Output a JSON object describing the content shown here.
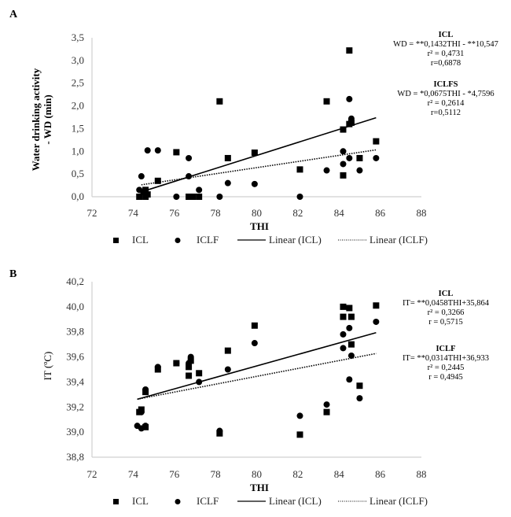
{
  "chart_data": [
    {
      "type": "scatter",
      "panel_label": "A",
      "title": "",
      "xlabel": "THI",
      "ylabel": "Water drinking activity - WD (min)",
      "ylabel_lines": [
        "Water drinking activity",
        "- WD (min)"
      ],
      "xlim": [
        72,
        88
      ],
      "ylim": [
        0,
        3.5
      ],
      "x_ticks": [
        "72",
        "74",
        "76",
        "78",
        "80",
        "82",
        "84",
        "86",
        "88"
      ],
      "y_ticks": [
        "0,0",
        "0,5",
        "1,0",
        "1,5",
        "2,0",
        "2,5",
        "3,0",
        "3,5"
      ],
      "grid": false,
      "legend_position": "bottom",
      "series": [
        {
          "name": "ICL",
          "marker": "square",
          "points": [
            [
              74.3,
              0.0
            ],
            [
              74.6,
              0.0
            ],
            [
              74.7,
              0.05
            ],
            [
              74.5,
              0.1
            ],
            [
              74.6,
              0.15
            ],
            [
              75.2,
              0.35
            ],
            [
              76.1,
              0.98
            ],
            [
              76.7,
              0.0
            ],
            [
              76.9,
              0.0
            ],
            [
              77.2,
              0.0
            ],
            [
              78.2,
              2.1
            ],
            [
              78.6,
              0.85
            ],
            [
              79.9,
              0.97
            ],
            [
              82.1,
              0.6
            ],
            [
              83.4,
              2.1
            ],
            [
              84.2,
              1.48
            ],
            [
              84.2,
              0.47
            ],
            [
              84.5,
              1.6
            ],
            [
              84.6,
              1.63
            ],
            [
              84.5,
              3.22
            ],
            [
              85.0,
              0.85
            ],
            [
              85.8,
              1.22
            ]
          ]
        },
        {
          "name": "ICLF",
          "marker": "circle",
          "points": [
            [
              74.3,
              0.15
            ],
            [
              74.4,
              0.45
            ],
            [
              74.6,
              0.1
            ],
            [
              74.7,
              1.02
            ],
            [
              75.2,
              1.02
            ],
            [
              76.1,
              0.0
            ],
            [
              76.7,
              0.85
            ],
            [
              76.7,
              0.45
            ],
            [
              77.2,
              0.15
            ],
            [
              78.2,
              0.0
            ],
            [
              78.6,
              0.3
            ],
            [
              79.9,
              0.28
            ],
            [
              82.1,
              0.0
            ],
            [
              83.4,
              0.58
            ],
            [
              84.2,
              0.72
            ],
            [
              84.2,
              1.0
            ],
            [
              84.5,
              0.85
            ],
            [
              84.6,
              1.72
            ],
            [
              84.5,
              2.15
            ],
            [
              85.0,
              0.58
            ],
            [
              85.8,
              0.85
            ]
          ]
        },
        {
          "name": "Linear (ICL)",
          "type": "trendline",
          "style": "solid",
          "slope": 0.1432,
          "intercept": -10.547,
          "x_range": [
            74.4,
            85.8
          ]
        },
        {
          "name": "Linear (ICLF)",
          "type": "trendline",
          "style": "dotted",
          "slope": 0.0675,
          "intercept": -4.7596,
          "x_range": [
            74.4,
            85.8
          ]
        }
      ],
      "annotations": [
        {
          "title": "ICL",
          "lines": [
            "WD = **0,1432THI - **10,547",
            "r² = 0,4731",
            "r=0,6878"
          ]
        },
        {
          "title": "ICLFS",
          "lines": [
            "WD = *0,0675THI - *4,7596",
            "r² = 0,2614",
            "r=0,5112"
          ]
        }
      ],
      "legend": [
        {
          "label": "ICL",
          "symbol": "square"
        },
        {
          "label": "ICLF",
          "symbol": "circle"
        },
        {
          "label": "Linear (ICL)",
          "symbol": "solid-line"
        },
        {
          "label": "Linear (ICLF)",
          "symbol": "dotted-line"
        }
      ]
    },
    {
      "type": "scatter",
      "panel_label": "B",
      "title": "",
      "xlabel": "THI",
      "ylabel": "IT (ºC)",
      "ylabel_lines": [
        "IT (ºC)"
      ],
      "xlim": [
        72,
        88
      ],
      "ylim": [
        38.8,
        40.2
      ],
      "x_ticks": [
        "72",
        "74",
        "76",
        "78",
        "80",
        "82",
        "84",
        "86",
        "88"
      ],
      "y_ticks": [
        "38,8",
        "39,0",
        "39,2",
        "39,4",
        "39,6",
        "39,8",
        "40,0",
        "40,2"
      ],
      "grid": false,
      "legend_position": "bottom",
      "series": [
        {
          "name": "ICL",
          "marker": "square",
          "points": [
            [
              74.3,
              39.16
            ],
            [
              74.4,
              39.18
            ],
            [
              74.6,
              39.04
            ],
            [
              74.6,
              39.32
            ],
            [
              75.2,
              39.5
            ],
            [
              76.1,
              39.55
            ],
            [
              76.7,
              39.45
            ],
            [
              76.7,
              39.52
            ],
            [
              76.8,
              39.57
            ],
            [
              77.2,
              39.47
            ],
            [
              78.2,
              38.99
            ],
            [
              78.6,
              39.65
            ],
            [
              79.9,
              39.85
            ],
            [
              82.1,
              38.98
            ],
            [
              83.4,
              39.16
            ],
            [
              84.2,
              39.92
            ],
            [
              84.2,
              40.0
            ],
            [
              84.5,
              39.99
            ],
            [
              84.6,
              39.92
            ],
            [
              84.6,
              39.7
            ],
            [
              85.0,
              39.37
            ],
            [
              85.8,
              40.01
            ]
          ]
        },
        {
          "name": "ICLF",
          "marker": "circle",
          "points": [
            [
              74.2,
              39.05
            ],
            [
              74.4,
              39.03
            ],
            [
              74.4,
              39.16
            ],
            [
              74.6,
              39.05
            ],
            [
              74.6,
              39.34
            ],
            [
              75.2,
              39.52
            ],
            [
              76.1,
              39.55
            ],
            [
              76.7,
              39.55
            ],
            [
              76.8,
              39.6
            ],
            [
              77.2,
              39.4
            ],
            [
              78.2,
              39.01
            ],
            [
              78.6,
              39.5
            ],
            [
              79.9,
              39.71
            ],
            [
              82.1,
              39.13
            ],
            [
              83.4,
              39.22
            ],
            [
              84.2,
              39.67
            ],
            [
              84.2,
              39.78
            ],
            [
              84.5,
              39.83
            ],
            [
              84.6,
              39.61
            ],
            [
              84.5,
              39.42
            ],
            [
              85.0,
              39.27
            ],
            [
              85.8,
              39.88
            ]
          ]
        },
        {
          "name": "Linear (ICL)",
          "type": "trendline",
          "style": "solid",
          "slope": 0.0458,
          "intercept": 35.864,
          "x_range": [
            74.2,
            85.8
          ]
        },
        {
          "name": "Linear (ICLF)",
          "type": "trendline",
          "style": "dotted",
          "slope": 0.0314,
          "intercept": 36.933,
          "x_range": [
            74.2,
            85.8
          ]
        }
      ],
      "annotations": [
        {
          "title": "ICL",
          "lines": [
            "IT= **0,0458THI+35,864",
            "r² = 0,3266",
            "r = 0,5715"
          ]
        },
        {
          "title": "ICLF",
          "lines": [
            "IT= **0,0314THI+36,933",
            "r² = 0,2445",
            "r = 0,4945"
          ]
        }
      ],
      "legend": [
        {
          "label": "ICL",
          "symbol": "square"
        },
        {
          "label": "ICLF",
          "symbol": "circle"
        },
        {
          "label": "Linear (ICL)",
          "symbol": "solid-line"
        },
        {
          "label": "Linear (ICLF)",
          "symbol": "dotted-line"
        }
      ]
    }
  ]
}
